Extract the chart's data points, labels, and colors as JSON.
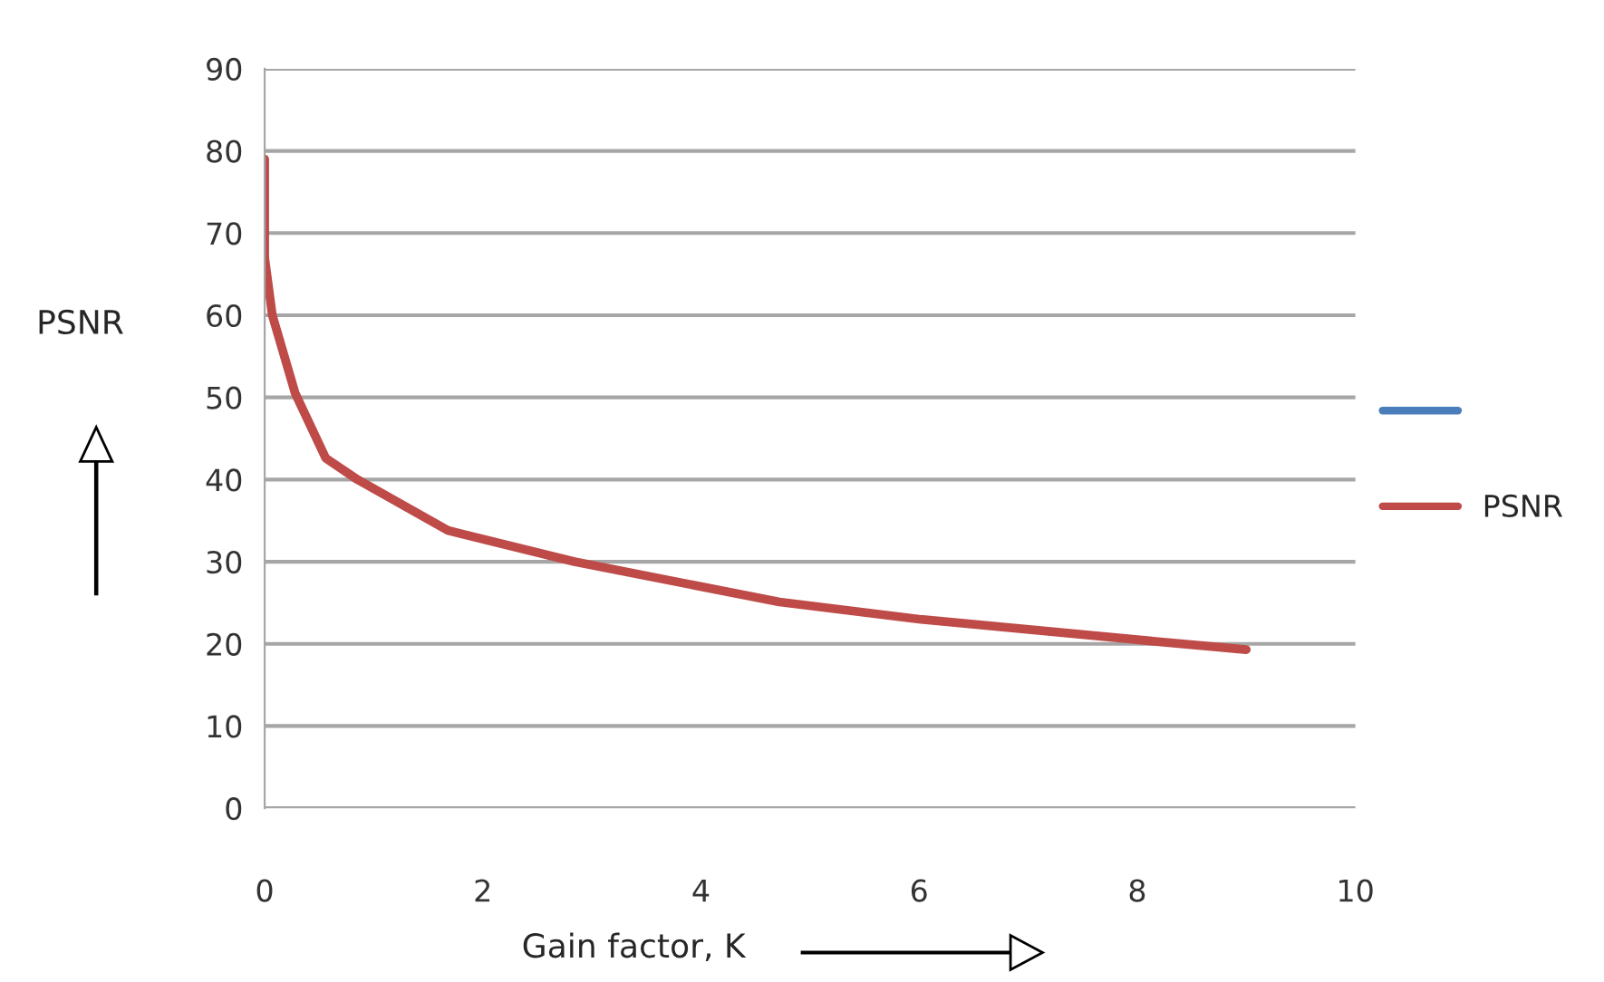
{
  "chart_data": {
    "type": "line",
    "xlabel": "Gain factor, K",
    "ylabel": "PSNR",
    "series": [
      {
        "name": null,
        "color": "#4a7ebb"
      },
      {
        "name": "PSNR",
        "color": "#be4b48",
        "x": [
          0,
          0,
          0.07,
          0.28,
          0.56,
          0.85,
          1.68,
          2.84,
          4.72,
          6,
          8,
          9
        ],
        "values": [
          79,
          67,
          60,
          50.5,
          42.6,
          40,
          33.8,
          30,
          25.1,
          23,
          20.5,
          19.3
        ]
      }
    ],
    "xlim": [
      0,
      10
    ],
    "xticks": [
      0,
      2,
      4,
      6,
      8,
      10
    ],
    "ylim": [
      0,
      90
    ],
    "yticks": [
      0,
      10,
      20,
      30,
      40,
      50,
      60,
      70,
      80,
      90
    ],
    "grid": "y",
    "legend": "right",
    "marker": "none",
    "line_style": "solid"
  }
}
